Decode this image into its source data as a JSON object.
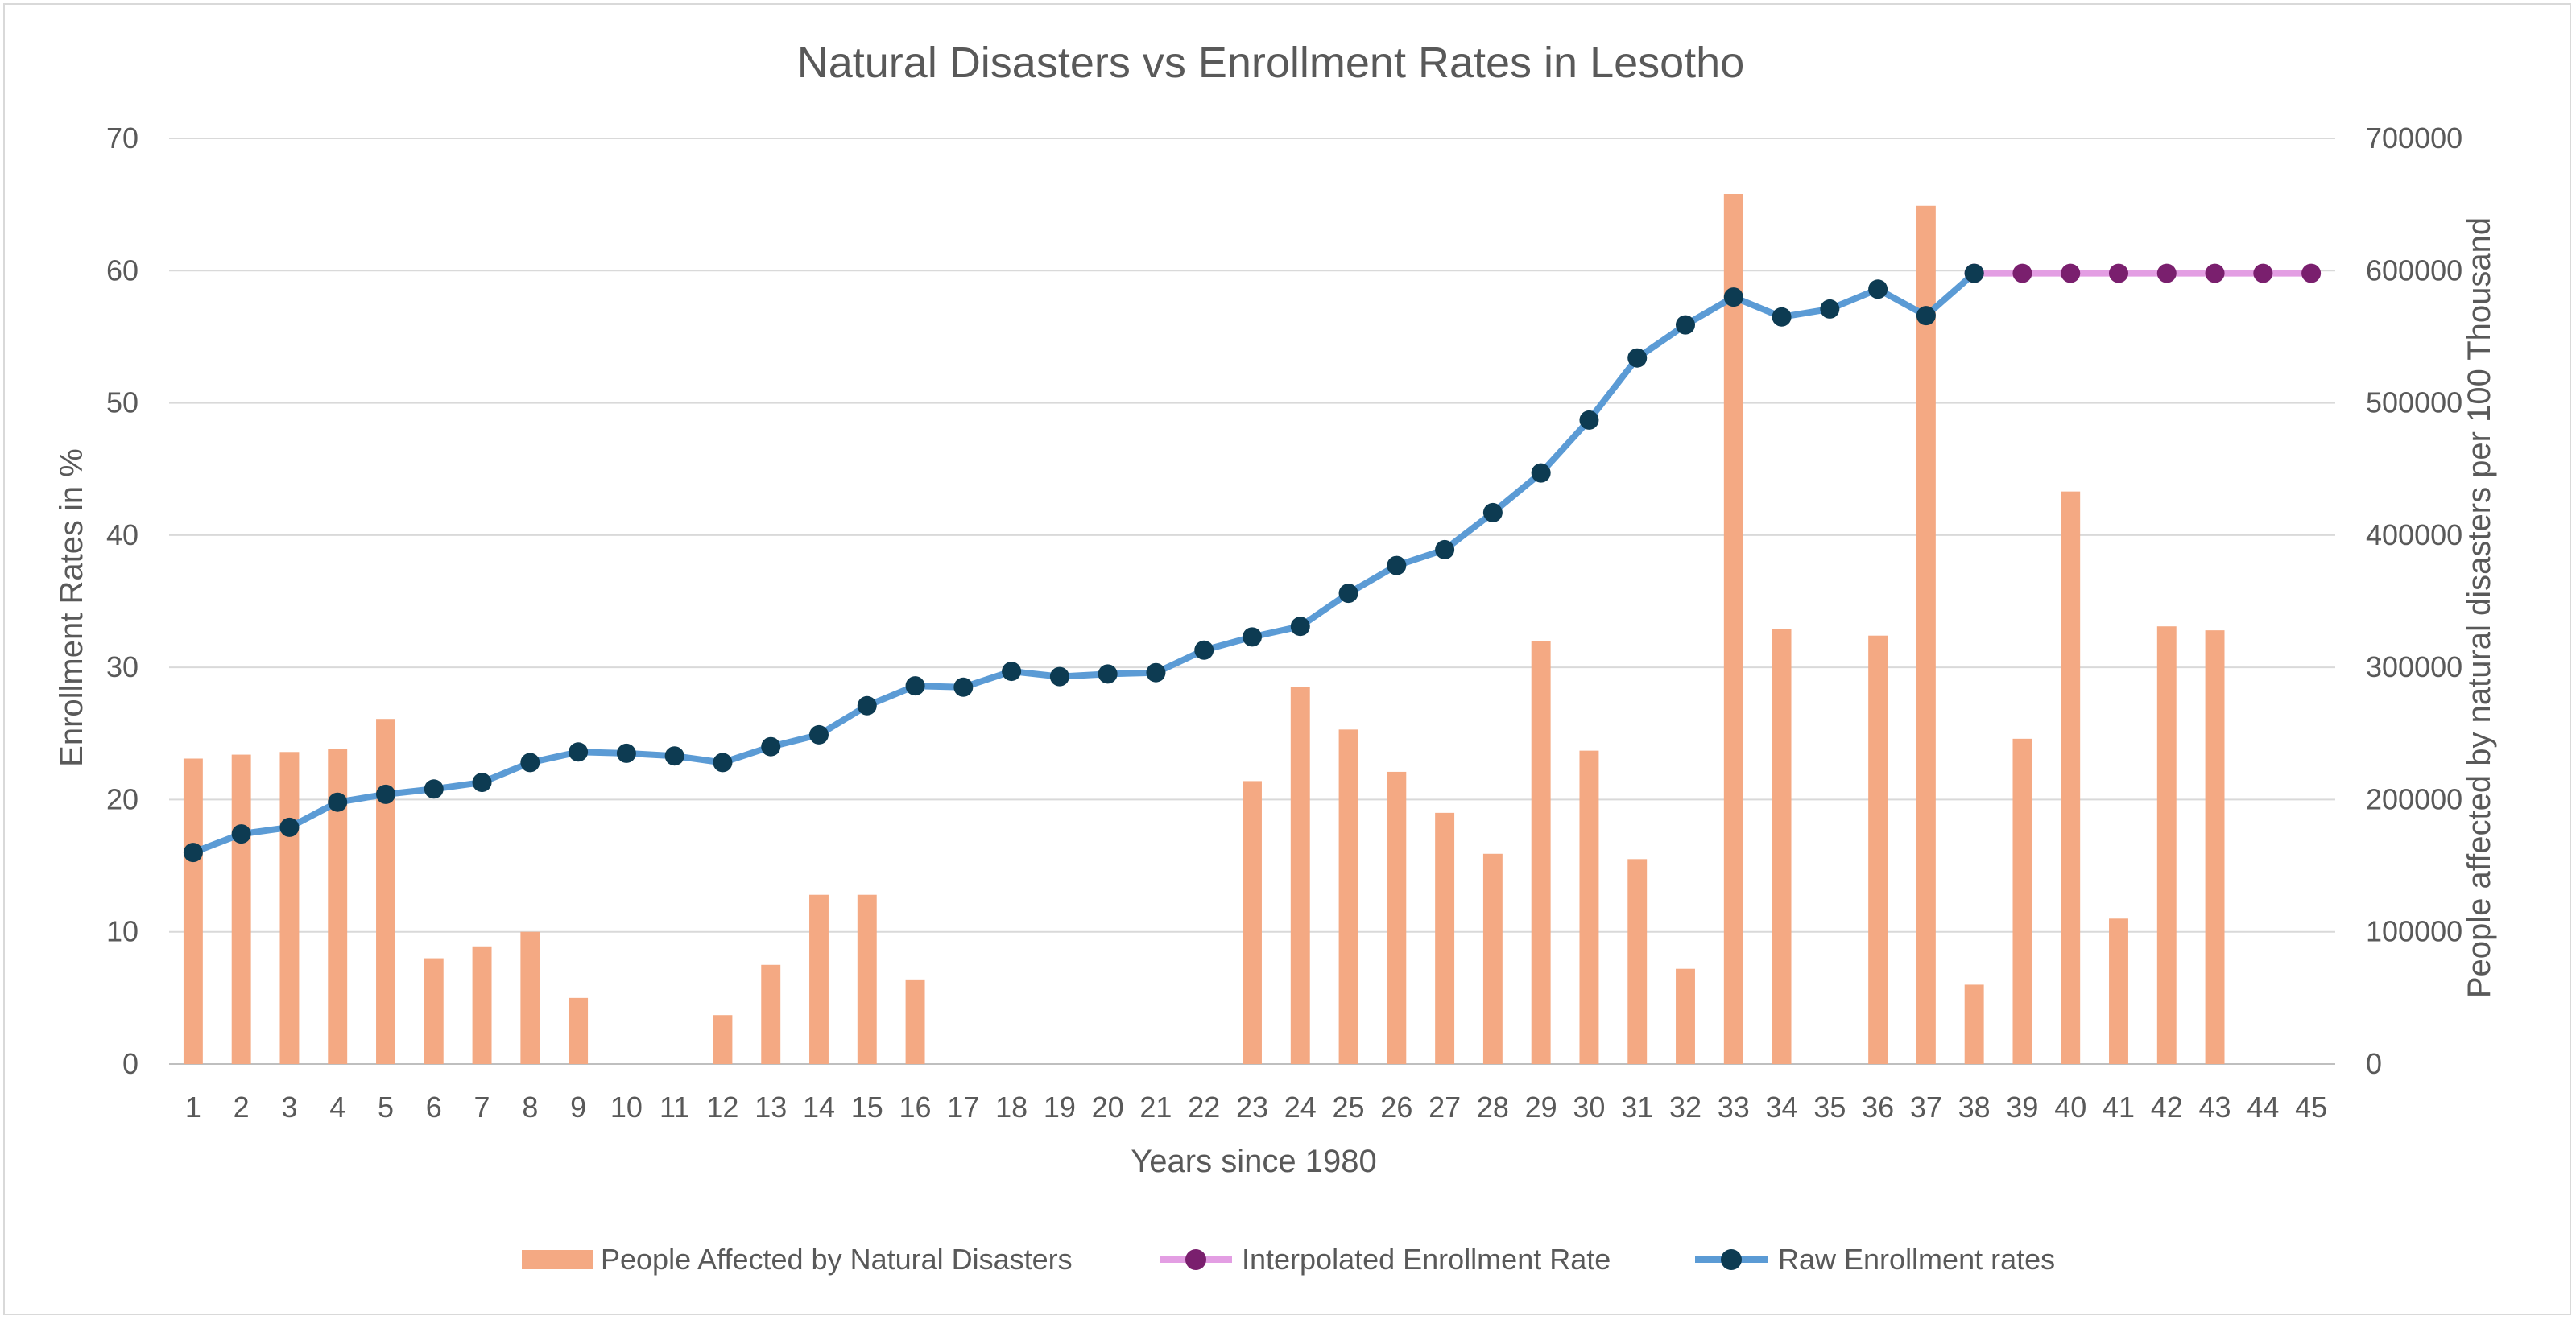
{
  "chart_data": {
    "type": "bar",
    "title": "Natural Disasters vs Enrollment Rates in Lesotho",
    "xlabel": "Years since 1980",
    "ylabel": "Enrollment Rates in %",
    "y2label": "People affected by natural disasters per 100 Thousand",
    "categories": [
      "1",
      "2",
      "3",
      "4",
      "5",
      "6",
      "7",
      "8",
      "9",
      "10",
      "11",
      "12",
      "13",
      "14",
      "15",
      "16",
      "17",
      "18",
      "19",
      "20",
      "21",
      "22",
      "23",
      "24",
      "25",
      "26",
      "27",
      "28",
      "29",
      "30",
      "31",
      "32",
      "33",
      "34",
      "35",
      "36",
      "37",
      "38",
      "39",
      "40",
      "41",
      "42",
      "43",
      "44",
      "45"
    ],
    "ylim": [
      0,
      70
    ],
    "y_ticks": [
      0,
      10,
      20,
      30,
      40,
      50,
      60,
      70
    ],
    "y2lim": [
      0,
      700000
    ],
    "y2_ticks": [
      0,
      100000,
      200000,
      300000,
      400000,
      500000,
      600000,
      700000
    ],
    "grid": true,
    "legend_position": "bottom",
    "series": [
      {
        "name": "People Affected by Natural Disasters",
        "type": "bar",
        "axis": "right",
        "color": "#f4a983",
        "values": [
          231000,
          234000,
          236000,
          238000,
          261000,
          80000,
          89000,
          100000,
          50000,
          0,
          0,
          37000,
          75000,
          128000,
          128000,
          64000,
          0,
          0,
          0,
          0,
          0,
          0,
          214000,
          285000,
          253000,
          221000,
          190000,
          159000,
          320000,
          237000,
          155000,
          72000,
          658000,
          329000,
          0,
          324000,
          649000,
          60000,
          246000,
          433000,
          110000,
          331000,
          328000,
          0,
          0
        ]
      },
      {
        "name": "Interpolated Enrollment Rate",
        "type": "line",
        "axis": "left",
        "color": "#e39ee3",
        "marker_color": "#7a1f6e",
        "x": [
          "38",
          "39",
          "40",
          "41",
          "42",
          "43",
          "44",
          "45"
        ],
        "values": [
          59.8,
          59.8,
          59.8,
          59.8,
          59.8,
          59.8,
          59.8,
          59.8
        ]
      },
      {
        "name": "Raw Enrollment rates",
        "type": "line",
        "axis": "left",
        "color": "#5b9bd5",
        "marker_color": "#0d3b52",
        "x": [
          "1",
          "2",
          "3",
          "4",
          "5",
          "6",
          "7",
          "8",
          "9",
          "10",
          "11",
          "12",
          "13",
          "14",
          "15",
          "16",
          "17",
          "18",
          "19",
          "20",
          "21",
          "22",
          "23",
          "24",
          "25",
          "26",
          "27",
          "28",
          "29",
          "30",
          "31",
          "32",
          "33",
          "34",
          "35",
          "36",
          "37",
          "38"
        ],
        "values": [
          16.0,
          17.4,
          17.9,
          19.8,
          20.4,
          20.8,
          21.3,
          22.8,
          23.6,
          23.5,
          23.3,
          22.8,
          24.0,
          24.9,
          27.1,
          28.6,
          28.5,
          29.7,
          29.3,
          29.5,
          29.6,
          31.3,
          32.3,
          33.1,
          35.6,
          37.7,
          38.9,
          41.7,
          44.7,
          48.7,
          53.4,
          55.9,
          58.0,
          56.5,
          57.1,
          58.6,
          56.6,
          59.8
        ]
      }
    ]
  }
}
